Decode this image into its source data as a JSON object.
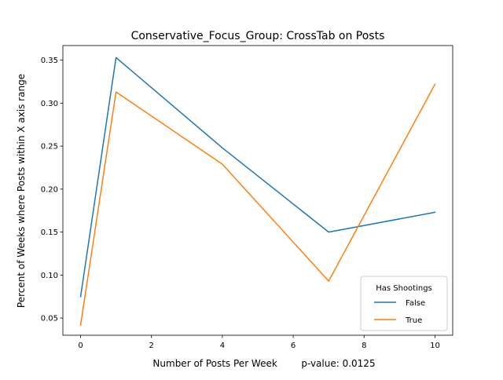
{
  "chart_data": {
    "type": "line",
    "title": "Conservative_Focus_Group: CrossTab on Posts",
    "xlabel": "Number of Posts Per Week        p-value: 0.0125",
    "ylabel": "Percent of Weeks where Posts within X axis range",
    "x": [
      0,
      1,
      4,
      7,
      10
    ],
    "xlim": [
      -0.5,
      10.5
    ],
    "ylim": [
      0.03,
      0.367
    ],
    "xticks": [
      0,
      2,
      4,
      6,
      8,
      10
    ],
    "xtick_labels": [
      "0",
      "2",
      "4",
      "6",
      "8",
      "10"
    ],
    "yticks": [
      0.05,
      0.1,
      0.15,
      0.2,
      0.25,
      0.3,
      0.35
    ],
    "ytick_labels": [
      "0.05",
      "0.10",
      "0.15",
      "0.20",
      "0.25",
      "0.30",
      "0.35"
    ],
    "grid": false,
    "legend": {
      "title": "Has Shootings",
      "placement": "lower-right"
    },
    "series": [
      {
        "name": "False",
        "color": "#1f77b4",
        "values": [
          0.075,
          0.353,
          0.248,
          0.15,
          0.173
        ]
      },
      {
        "name": "True",
        "color": "#ff7f0e",
        "values": [
          0.042,
          0.313,
          0.229,
          0.093,
          0.322
        ]
      }
    ]
  }
}
